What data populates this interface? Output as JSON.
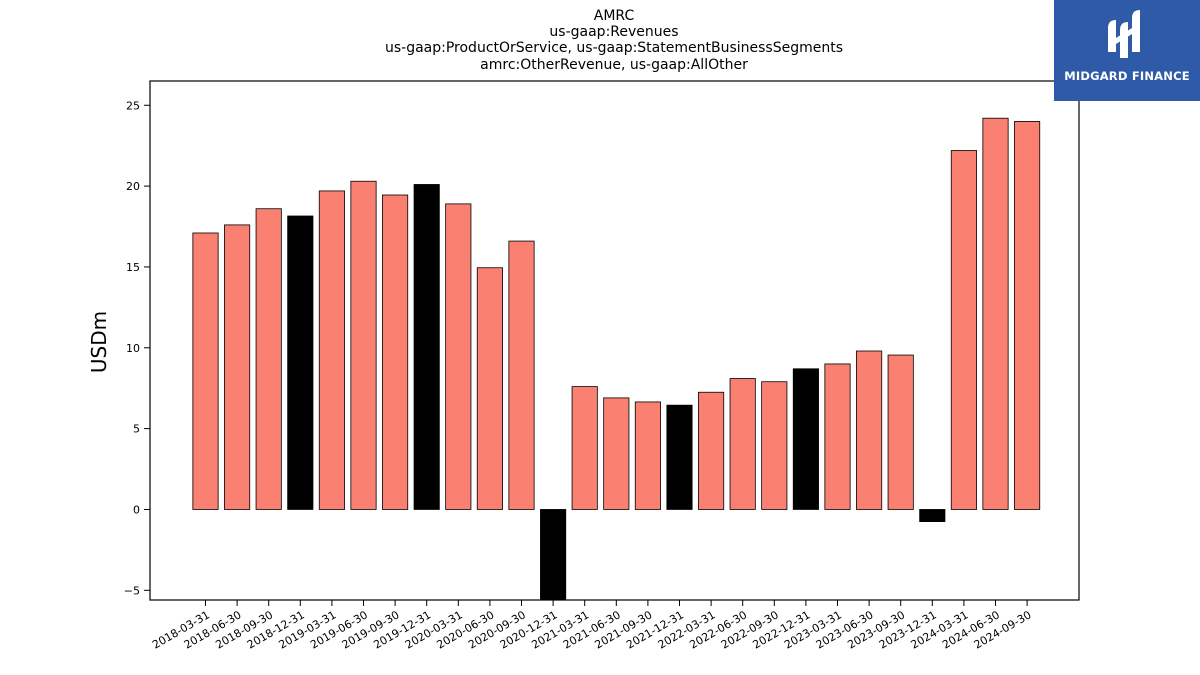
{
  "logo": {
    "text": "MIDGARD FINANCE"
  },
  "chart_data": {
    "type": "bar",
    "title_lines": [
      "AMRC",
      "us-gaap:Revenues",
      "us-gaap:ProductOrService, us-gaap:StatementBusinessSegments",
      "amrc:OtherRevenue, us-gaap:AllOther"
    ],
    "xlabel": "",
    "ylabel": "USDm",
    "ylim": [
      -5.6,
      26.5
    ],
    "yticks": [
      -5,
      0,
      5,
      10,
      15,
      20,
      25
    ],
    "ytick_labels": [
      "−5",
      "0",
      "5",
      "10",
      "15",
      "20",
      "25"
    ],
    "grid": false,
    "colors": {
      "default": "#fa8072",
      "highlight": "#000000",
      "edge": "#000000"
    },
    "categories": [
      "2018-03-31",
      "2018-06-30",
      "2018-09-30",
      "2018-12-31",
      "2019-03-31",
      "2019-06-30",
      "2019-09-30",
      "2019-12-31",
      "2020-03-31",
      "2020-06-30",
      "2020-09-30",
      "2020-12-31",
      "2021-03-31",
      "2021-06-30",
      "2021-09-30",
      "2021-12-31",
      "2022-03-31",
      "2022-06-30",
      "2022-09-30",
      "2022-12-31",
      "2023-03-31",
      "2023-06-30",
      "2023-09-30",
      "2023-12-31",
      "2024-03-31",
      "2024-06-30",
      "2024-09-30"
    ],
    "values": [
      17.1,
      17.6,
      18.6,
      18.15,
      19.7,
      20.3,
      19.45,
      20.1,
      18.9,
      14.95,
      16.6,
      -5.6,
      7.6,
      6.9,
      6.65,
      6.45,
      7.25,
      8.1,
      7.9,
      8.7,
      9.0,
      9.8,
      9.55,
      -0.75,
      22.2,
      24.2,
      24.0
    ],
    "highlight": [
      false,
      false,
      false,
      true,
      false,
      false,
      false,
      true,
      false,
      false,
      false,
      true,
      false,
      false,
      false,
      true,
      false,
      false,
      false,
      true,
      false,
      false,
      false,
      true,
      false,
      false,
      false
    ]
  }
}
